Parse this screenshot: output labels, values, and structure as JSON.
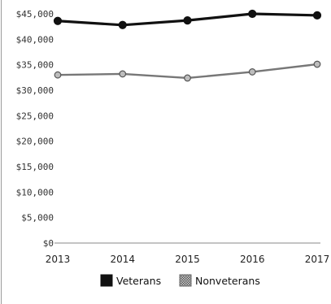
{
  "chart_data": {
    "type": "line",
    "x": [
      "2013",
      "2014",
      "2015",
      "2016",
      "2017"
    ],
    "series": [
      {
        "name": "Veterans",
        "values": [
          43600,
          42800,
          43700,
          45000,
          44700
        ],
        "color": "#111111"
      },
      {
        "name": "Nonveterans",
        "values": [
          33000,
          33200,
          32400,
          33600,
          35100
        ],
        "color": "#777777"
      }
    ],
    "yticks": [
      "$45,000",
      "$40,000",
      "$35,000",
      "$30,000",
      "$25,000",
      "$20,000",
      "$15,000",
      "$10,000",
      "$5,000",
      "$0"
    ],
    "ylim": [
      0,
      45000
    ],
    "grid": false,
    "legend_position": "bottom-center"
  }
}
